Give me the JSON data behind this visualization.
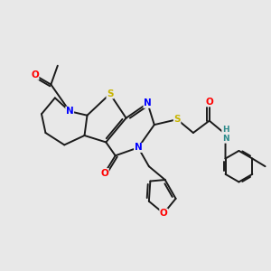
{
  "background_color": "#e8e8e8",
  "atom_colors": {
    "S": "#c8b400",
    "N": "#0000ff",
    "O": "#ff0000",
    "C": "#000000",
    "NH": "#2e8b8b"
  },
  "bond_color": "#1a1a1a",
  "bond_width": 1.4,
  "figsize": [
    3.0,
    3.0
  ],
  "dpi": 100
}
